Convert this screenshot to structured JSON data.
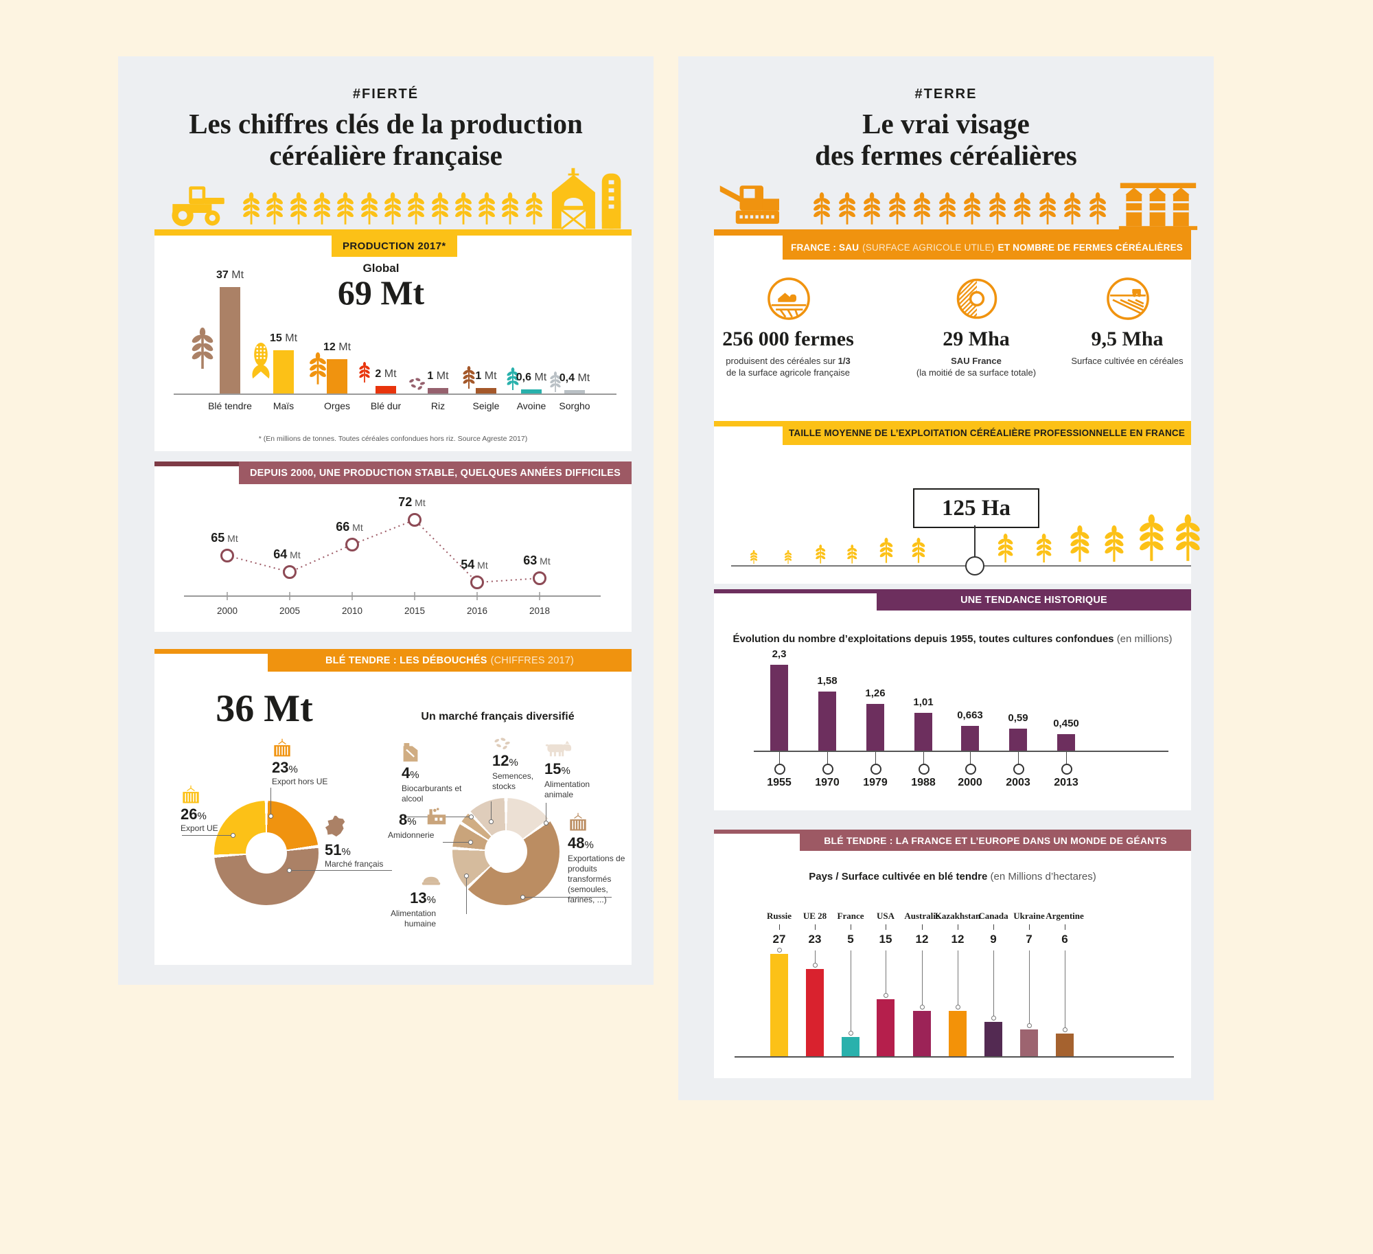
{
  "colors": {
    "cream": "#fdf4e1",
    "panel": "#edeff2",
    "yellow": "#fcc117",
    "orange": "#f0930f",
    "brown": "#ab8166",
    "maroon": "#9d5964",
    "maroon_dark": "#7e3b46",
    "purple": "#6d2f5e",
    "dark": "#1d1d1b"
  },
  "left_panel": {
    "hashtag": "#FIERTÉ",
    "title1": "Les chiffres clés de la production",
    "title2": "céréalière française",
    "production": {
      "badge": "PRODUCTION 2017*",
      "global_label": "Global",
      "global_value": "69 Mt",
      "footnote": "* (En millions de tonnes. Toutes céréales confondues hors riz. Source Agreste 2017)",
      "bars": [
        {
          "label": "Blé tendre",
          "value": "37",
          "unit": "Mt",
          "v": 37,
          "color": "#ab8166",
          "icon": "wheat"
        },
        {
          "label": "Maïs",
          "value": "15",
          "unit": "Mt",
          "v": 15,
          "color": "#fcc117",
          "icon": "corn"
        },
        {
          "label": "Orges",
          "value": "12",
          "unit": "Mt",
          "v": 12,
          "color": "#f0930f",
          "icon": "wheat"
        },
        {
          "label": "Blé dur",
          "value": "2",
          "unit": "Mt",
          "v": 2,
          "color": "#e8340c",
          "icon": "wheat"
        },
        {
          "label": "Riz",
          "value": "1",
          "unit": "Mt",
          "v": 1,
          "color": "#96616e",
          "icon": "seeds"
        },
        {
          "label": "Seigle",
          "value": "1",
          "unit": "Mt",
          "v": 1,
          "color": "#a4582a",
          "icon": "wheat"
        },
        {
          "label": "Avoine",
          "value": "0,6",
          "unit": "Mt",
          "v": 0.6,
          "color": "#29b1ac",
          "icon": "wheat"
        },
        {
          "label": "Sorgho",
          "value": "0,4",
          "unit": "Mt",
          "v": 0.4,
          "color": "#b9c0c5",
          "icon": "wheat"
        }
      ]
    },
    "timeline": {
      "banner": "DEPUIS 2000, UNE PRODUCTION STABLE, QUELQUES ANNÉES DIFFICILES",
      "points": [
        {
          "year": "2000",
          "value": "65",
          "unit": "Mt",
          "v": 65
        },
        {
          "year": "2005",
          "value": "64",
          "unit": "Mt",
          "v": 64
        },
        {
          "year": "2010",
          "value": "66",
          "unit": "Mt",
          "v": 66
        },
        {
          "year": "2015",
          "value": "72",
          "unit": "Mt",
          "v": 72
        },
        {
          "year": "2016",
          "value": "54",
          "unit": "Mt",
          "v": 54
        },
        {
          "year": "2018",
          "value": "63",
          "unit": "Mt",
          "v": 63
        }
      ]
    },
    "outlets": {
      "banner_main": "BLÉ TENDRE : LES DÉBOUCHÉS",
      "banner_light": "(CHIFFRES 2017)",
      "total": "36 Mt",
      "market_title": "Un marché français diversifié",
      "donut1": [
        {
          "pct": "23",
          "label": "Export hors UE",
          "color": "#f0930f"
        },
        {
          "pct": "51",
          "label": "Marché français",
          "color": "#ab8166"
        },
        {
          "pct": "26",
          "label": "Export UE",
          "color": "#fcc117"
        }
      ],
      "donut2": [
        {
          "pct": "15",
          "label": "Alimentation animale",
          "color": "#ece0d4"
        },
        {
          "pct": "48",
          "label": "Exportations de produits transformés (semoules, farines, ...)",
          "color": "#bb8d62"
        },
        {
          "pct": "13",
          "label": "Alimentation humaine",
          "color": "#d5bb9d"
        },
        {
          "pct": "8",
          "label": "Amidonnerie",
          "color": "#c9a47b"
        },
        {
          "pct": "4",
          "label": "Biocarburants et alcool",
          "color": "#d0ad83"
        },
        {
          "pct": "12",
          "label": "Semences, stocks",
          "color": "#dfcdbb"
        }
      ]
    }
  },
  "right_panel": {
    "hashtag": "#TERRE",
    "title1": "Le vrai visage",
    "title2": "des fermes céréalières",
    "sau": {
      "banner_b1": "FRANCE : SAU",
      "banner_l": "(SURFACE AGRICOLE UTILE)",
      "banner_b2": "ET NOMBRE DE FERMES CÉRÉALIÈRES",
      "stats": [
        {
          "value": "256 000 fermes",
          "sub1": "produisent des céréales sur",
          "sub1b": "1/3",
          "sub2": "de la surface agricole française",
          "icon": "farm"
        },
        {
          "value": "29 Mha",
          "sub1b": "SAU France",
          "sub2": "(la moitié de sa surface totale)",
          "icon": "half"
        },
        {
          "value": "9,5 Mha",
          "sub1": "Surface cultivée en céréales",
          "icon": "field"
        }
      ]
    },
    "size": {
      "banner": "TAILLE MOYENNE DE L’EXPLOITATION CÉRÉALIÈRE PROFESSIONNELLE EN FRANCE",
      "value": "125 Ha"
    },
    "trend": {
      "banner": "UNE TENDANCE HISTORIQUE",
      "subtitle_b": "Évolution du nombre d’exploitations depuis 1955, toutes cultures confondues",
      "subtitle_l": "(en millions)",
      "color": "#6d2f5e",
      "bars": [
        {
          "year": "1955",
          "value": "2,3",
          "v": 2.3
        },
        {
          "year": "1970",
          "value": "1,58",
          "v": 1.58
        },
        {
          "year": "1979",
          "value": "1,26",
          "v": 1.26
        },
        {
          "year": "1988",
          "value": "1,01",
          "v": 1.01
        },
        {
          "year": "2000",
          "value": "0,663",
          "v": 0.663
        },
        {
          "year": "2003",
          "value": "0,59",
          "v": 0.59
        },
        {
          "year": "2013",
          "value": "0,450",
          "v": 0.45
        }
      ]
    },
    "giants": {
      "banner": "BLÉ TENDRE : LA FRANCE ET L’EUROPE DANS UN MONDE DE GÉANTS",
      "subtitle_b": "Pays / Surface cultivée en blé tendre",
      "subtitle_l": "(en Millions d’hectares)",
      "bars": [
        {
          "country": "Russie",
          "value": "27",
          "v": 27,
          "color": "#fcc117"
        },
        {
          "country": "UE 28",
          "value": "23",
          "v": 23,
          "color": "#d9222e"
        },
        {
          "country": "France",
          "value": "5",
          "v": 5,
          "color": "#29b1ac"
        },
        {
          "country": "USA",
          "value": "15",
          "v": 15,
          "color": "#b51f4c"
        },
        {
          "country": "Australie",
          "value": "12",
          "v": 12,
          "color": "#9c2357"
        },
        {
          "country": "Kazakhstan",
          "value": "12",
          "v": 12,
          "color": "#f39208"
        },
        {
          "country": "Canada",
          "value": "9",
          "v": 9,
          "color": "#532a52"
        },
        {
          "country": "Ukraine",
          "value": "7",
          "v": 7,
          "color": "#9d6470"
        },
        {
          "country": "Argentine",
          "value": "6",
          "v": 6,
          "color": "#a5622f"
        }
      ]
    }
  },
  "chart_data": [
    {
      "type": "bar",
      "title": "Production 2017 (Global 69 Mt)",
      "ylabel": "Mt",
      "categories": [
        "Blé tendre",
        "Maïs",
        "Orges",
        "Blé dur",
        "Riz",
        "Seigle",
        "Avoine",
        "Sorgho"
      ],
      "values": [
        37,
        15,
        12,
        2,
        1,
        1,
        0.6,
        0.4
      ]
    },
    {
      "type": "line",
      "title": "Depuis 2000, une production stable, quelques années difficiles",
      "ylabel": "Mt",
      "x": [
        "2000",
        "2005",
        "2010",
        "2015",
        "2016",
        "2018"
      ],
      "values": [
        65,
        64,
        66,
        72,
        54,
        63
      ]
    },
    {
      "type": "pie",
      "title": "Blé tendre : les débouchés (chiffres 2017) — 36 Mt",
      "labels": [
        "Export hors UE",
        "Marché français",
        "Export UE"
      ],
      "values": [
        23,
        51,
        26
      ]
    },
    {
      "type": "pie",
      "title": "Un marché français diversifié",
      "labels": [
        "Alimentation animale",
        "Exportations de produits transformés (semoules, farines, ...)",
        "Alimentation humaine",
        "Amidonnerie",
        "Biocarburants et alcool",
        "Semences, stocks"
      ],
      "values": [
        15,
        48,
        13,
        8,
        4,
        12
      ]
    },
    {
      "type": "bar",
      "title": "Évolution du nombre d’exploitations depuis 1955, toutes cultures confondues (en millions)",
      "categories": [
        "1955",
        "1970",
        "1979",
        "1988",
        "2000",
        "2003",
        "2013"
      ],
      "values": [
        2.3,
        1.58,
        1.26,
        1.01,
        0.663,
        0.59,
        0.45
      ]
    },
    {
      "type": "bar",
      "title": "Pays / Surface cultivée en blé tendre (en Millions d’hectares)",
      "categories": [
        "Russie",
        "UE 28",
        "France",
        "USA",
        "Australie",
        "Kazakhstan",
        "Canada",
        "Ukraine",
        "Argentine"
      ],
      "values": [
        27,
        23,
        5,
        15,
        12,
        12,
        9,
        7,
        6
      ]
    }
  ]
}
